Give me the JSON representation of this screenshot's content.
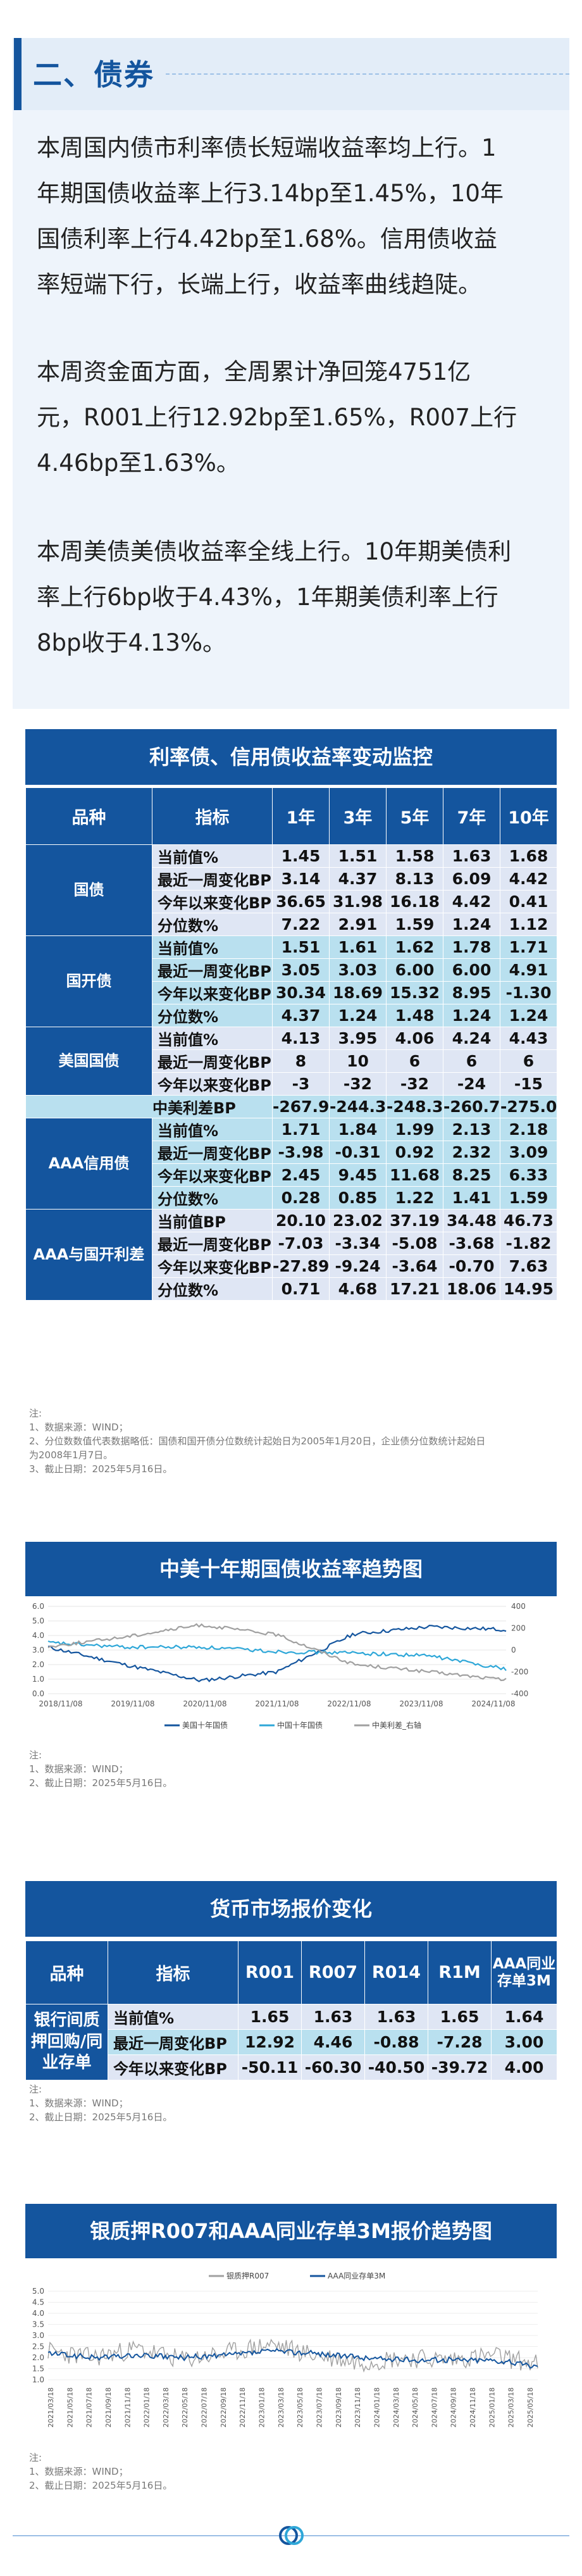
{
  "section": {
    "title": "二、债券"
  },
  "paragraphs": [
    [
      "本周国内债市利率债长短端收益率均上行。1",
      "年期国债收益率上行3.14bp至1.45%，10年",
      "国债利率上行4.42bp至1.68%。信用债收益",
      "率短端下行，长端上行，收益率曲线趋陡。"
    ],
    [
      "本周资金面方面，全周累计净回笼4751亿",
      "元，R001上行12.92bp至1.65%，R007上行",
      "4.46bp至1.63%。"
    ],
    [
      "本周美债美债收益率全线上行。10年期美债利",
      "率上行6bp收于4.43%，1年期美债利率上行",
      "8bp收于4.13%。"
    ]
  ],
  "table1": {
    "title": "利率债、信用债收益率变动监控",
    "headers": [
      "品种",
      "指标",
      "1年",
      "3年",
      "5年",
      "7年",
      "10年"
    ],
    "groups": [
      {
        "name": "国债",
        "rows": [
          {
            "label": "当前值%",
            "values": [
              "1.45",
              "1.51",
              "1.58",
              "1.63",
              "1.68"
            ]
          },
          {
            "label": "最近一周变化BP",
            "values": [
              "3.14",
              "4.37",
              "8.13",
              "6.09",
              "4.42"
            ]
          },
          {
            "label": "今年以来变化BP",
            "values": [
              "36.65",
              "31.98",
              "16.18",
              "4.42",
              "0.41"
            ]
          },
          {
            "label": "分位数%",
            "values": [
              "7.22",
              "2.91",
              "1.59",
              "1.24",
              "1.12"
            ]
          }
        ]
      },
      {
        "name": "国开债",
        "rows": [
          {
            "label": "当前值%",
            "values": [
              "1.51",
              "1.61",
              "1.62",
              "1.78",
              "1.71"
            ]
          },
          {
            "label": "最近一周变化BP",
            "values": [
              "3.05",
              "3.03",
              "6.00",
              "6.00",
              "4.91"
            ]
          },
          {
            "label": "今年以来变化BP",
            "values": [
              "30.34",
              "18.69",
              "15.32",
              "8.95",
              "-1.30"
            ]
          },
          {
            "label": "分位数%",
            "values": [
              "4.37",
              "1.24",
              "1.48",
              "1.24",
              "1.24"
            ]
          }
        ]
      },
      {
        "name": "美国国债",
        "rows": [
          {
            "label": "当前值%",
            "values": [
              "4.13",
              "3.95",
              "4.06",
              "4.24",
              "4.43"
            ]
          },
          {
            "label": "最近一周变化BP",
            "values": [
              "8",
              "10",
              "6",
              "6",
              "6"
            ]
          },
          {
            "label": "今年以来变化BP",
            "values": [
              "-3",
              "-32",
              "-32",
              "-24",
              "-15"
            ]
          }
        ]
      },
      {
        "name": "",
        "rows": [
          {
            "label": "中美利差BP",
            "values": [
              "-267.92",
              "-244.30",
              "-248.30",
              "-260.71",
              "-275.07"
            ]
          }
        ]
      },
      {
        "name": "AAA信用债",
        "rows": [
          {
            "label": "当前值%",
            "values": [
              "1.71",
              "1.84",
              "1.99",
              "2.13",
              "2.18"
            ]
          },
          {
            "label": "最近一周变化BP",
            "values": [
              "-3.98",
              "-0.31",
              "0.92",
              "2.32",
              "3.09"
            ]
          },
          {
            "label": "今年以来变化BP",
            "values": [
              "2.45",
              "9.45",
              "11.68",
              "8.25",
              "6.33"
            ]
          },
          {
            "label": "分位数%",
            "values": [
              "0.28",
              "0.85",
              "1.22",
              "1.41",
              "1.59"
            ]
          }
        ]
      },
      {
        "name": "AAA与国开利差",
        "rows": [
          {
            "label": "当前值BP",
            "values": [
              "20.10",
              "23.02",
              "37.19",
              "34.48",
              "46.73"
            ]
          },
          {
            "label": "最近一周变化BP",
            "values": [
              "-7.03",
              "-3.34",
              "-5.08",
              "-3.68",
              "-1.82"
            ]
          },
          {
            "label": "今年以来变化BP",
            "values": [
              "-27.89",
              "-9.24",
              "-3.64",
              "-0.70",
              "7.63"
            ]
          },
          {
            "label": "分位数%",
            "values": [
              "0.71",
              "4.68",
              "17.21",
              "18.06",
              "14.95"
            ]
          }
        ]
      }
    ],
    "notes": [
      "注:",
      "1、数据来源：WIND；",
      "2、分位数数值代表数据略低：国债和国开债分位数统计起始日为2005年1月20日，企业债分位数统计起始日",
      "为2008年1月7日。",
      "3、截止日期：2025年5月16日。"
    ]
  },
  "chart_data": [
    {
      "type": "line",
      "title": "中美十年期国债收益率趋势图",
      "x": [
        "2018/11/08",
        "2019/11/08",
        "2020/11/08",
        "2021/11/08",
        "2022/11/08",
        "2023/11/08",
        "2024/11/08"
      ],
      "series": [
        {
          "name": "美国十年国债",
          "axis": "left",
          "values": [
            3.2,
            2.0,
            0.9,
            1.5,
            4.1,
            4.6,
            4.4
          ],
          "color": "#14559e"
        },
        {
          "name": "中国十年国债",
          "axis": "left",
          "values": [
            3.5,
            3.2,
            3.2,
            2.9,
            2.8,
            2.6,
            1.7
          ],
          "color": "#2ea7d8"
        },
        {
          "name": "中美利差_右轴",
          "axis": "right",
          "values": [
            30,
            120,
            230,
            140,
            -130,
            -200,
            -275
          ],
          "color": "#a0a0a0"
        }
      ],
      "ylim": [
        0,
        6
      ],
      "y_ticks": [
        "0.0",
        "1.0",
        "2.0",
        "3.0",
        "4.0",
        "5.0",
        "6.0"
      ],
      "y2lim": [
        -400,
        400
      ],
      "y2_ticks": [
        "-400",
        "-200",
        "0",
        "200",
        "400"
      ],
      "legend": "bottom",
      "notes": [
        "注:",
        "1、数据来源：WIND；",
        "2、截止日期：2025年5月16日。"
      ]
    },
    {
      "type": "line",
      "title": "银质押R007和AAA同业存单3M报价趋势图",
      "series": [
        {
          "name": "银质押R007",
          "values": [
            2.3,
            2.0,
            2.4,
            1.9,
            2.2,
            2.6,
            2.1,
            1.8,
            2.0,
            1.9,
            2.1,
            1.7
          ],
          "color": "#a0a0a0"
        },
        {
          "name": "AAA同业存单3M",
          "values": [
            2.2,
            2.0,
            2.1,
            2.0,
            2.1,
            2.3,
            2.2,
            2.0,
            1.9,
            1.9,
            1.9,
            1.6
          ],
          "color": "#14559e"
        }
      ],
      "ylim": [
        1.0,
        5.0
      ],
      "y_ticks": [
        "1.0",
        "1.5",
        "2.0",
        "2.5",
        "3.0",
        "3.5",
        "4.0",
        "4.5",
        "5.0"
      ],
      "legend": "top",
      "x_ticks": [
        "2021/03/18",
        "2021/05/18",
        "2021/07/18",
        "2021/09/18",
        "2021/11/18",
        "2022/01/18",
        "2022/03/18",
        "2022/05/18",
        "2022/07/18",
        "2022/09/18",
        "2022/11/18",
        "2023/01/18",
        "2023/03/18",
        "2023/05/18",
        "2023/07/18",
        "2023/09/18",
        "2023/11/18",
        "2024/01/18",
        "2024/03/18",
        "2024/05/18",
        "2024/07/18",
        "2024/09/18",
        "2024/11/18",
        "2025/01/18",
        "2025/03/18",
        "2025/05/18"
      ],
      "notes": [
        "注:",
        "1、数据来源：WIND；",
        "2、截止日期：2025年5月16日。"
      ]
    }
  ],
  "table2": {
    "title": "货币市场报价变化",
    "headers": [
      "品种",
      "指标",
      "R001",
      "R007",
      "R014",
      "R1M",
      "AAA同业存单3M"
    ],
    "group": "银行间质押回购/同业存单",
    "rows": [
      {
        "label": "当前值%",
        "values": [
          "1.65",
          "1.63",
          "1.63",
          "1.65",
          "1.64"
        ]
      },
      {
        "label": "最近一周变化BP",
        "values": [
          "12.92",
          "4.46",
          "-0.88",
          "-7.28",
          "3.00"
        ]
      },
      {
        "label": "今年以来变化BP",
        "values": [
          "-50.11",
          "-60.30",
          "-40.50",
          "-39.72",
          "4.00"
        ]
      }
    ],
    "notes": [
      "注:",
      "1、数据来源：WIND；",
      "2、截止日期：2025年5月16日。"
    ]
  }
}
